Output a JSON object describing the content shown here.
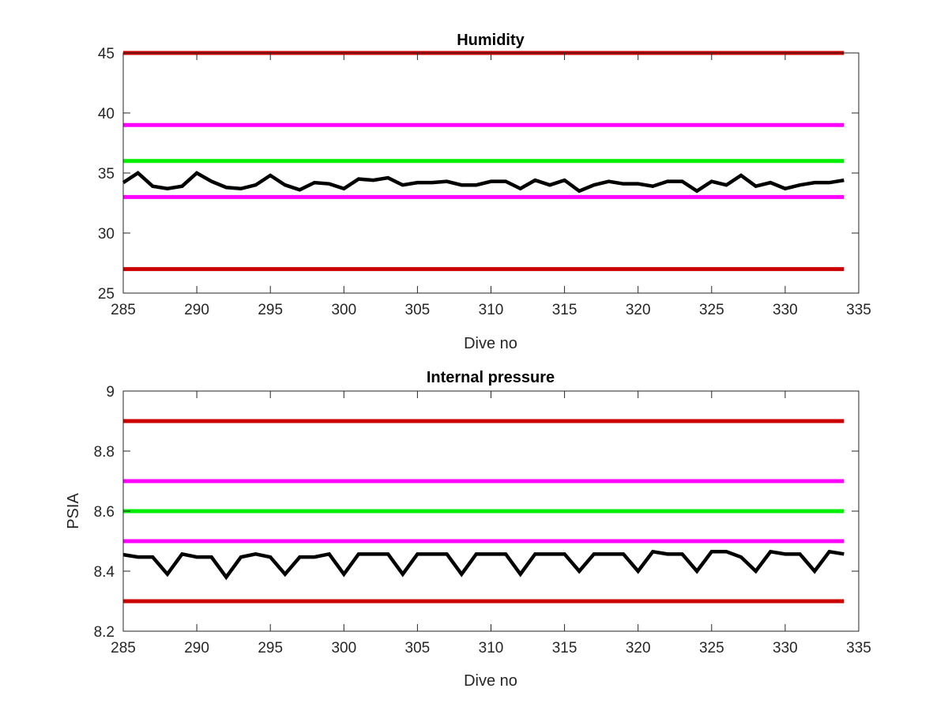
{
  "colors": {
    "limit_red": "#cc0000",
    "limit_magenta": "#ff00ff",
    "limit_green": "#00ee00",
    "series_black": "#000000"
  },
  "chart_data": [
    {
      "type": "line",
      "title": "Humidity",
      "xlabel": "Dive no",
      "ylabel": "",
      "xlim": [
        285,
        335
      ],
      "ylim": [
        25,
        45
      ],
      "xticks": [
        "285",
        "290",
        "295",
        "300",
        "305",
        "310",
        "315",
        "320",
        "325",
        "330",
        "335"
      ],
      "yticks": [
        "25",
        "30",
        "35",
        "40",
        "45"
      ],
      "grid": false,
      "hlines": [
        {
          "y": 45,
          "color": "limit_red",
          "x": [
            285,
            334
          ]
        },
        {
          "y": 39,
          "color": "limit_magenta",
          "x": [
            285,
            334
          ]
        },
        {
          "y": 36,
          "color": "limit_green",
          "x": [
            285,
            334
          ]
        },
        {
          "y": 33,
          "color": "limit_magenta",
          "x": [
            285,
            334
          ]
        },
        {
          "y": 27,
          "color": "limit_red",
          "x": [
            285,
            334
          ]
        }
      ],
      "series": [
        {
          "color": "series_black",
          "x": [
            285,
            286,
            287,
            288,
            289,
            290,
            291,
            292,
            293,
            294,
            295,
            296,
            297,
            298,
            299,
            300,
            301,
            302,
            303,
            304,
            305,
            306,
            307,
            308,
            309,
            310,
            311,
            312,
            313,
            314,
            315,
            316,
            317,
            318,
            319,
            320,
            321,
            322,
            323,
            324,
            325,
            326,
            327,
            328,
            329,
            330,
            331,
            332,
            333,
            334
          ],
          "y": [
            34.2,
            35.0,
            33.9,
            33.7,
            33.9,
            35.0,
            34.3,
            33.8,
            33.7,
            34.0,
            34.8,
            34.0,
            33.6,
            34.2,
            34.1,
            33.7,
            34.5,
            34.4,
            34.6,
            34.0,
            34.2,
            34.2,
            34.3,
            34.0,
            34.0,
            34.3,
            34.3,
            33.7,
            34.4,
            34.0,
            34.4,
            33.5,
            34.0,
            34.3,
            34.1,
            34.1,
            33.9,
            34.3,
            34.3,
            33.5,
            34.3,
            34.0,
            34.8,
            33.9,
            34.2,
            33.7,
            34.0,
            34.2,
            34.2,
            34.4
          ]
        }
      ]
    },
    {
      "type": "line",
      "title": "Internal pressure",
      "xlabel": "Dive no",
      "ylabel": "PSIA",
      "xlim": [
        285,
        335
      ],
      "ylim": [
        8.2,
        9
      ],
      "xticks": [
        "285",
        "290",
        "295",
        "300",
        "305",
        "310",
        "315",
        "320",
        "325",
        "330",
        "335"
      ],
      "yticks": [
        "8.2",
        "8.4",
        "8.6",
        "8.8",
        "9"
      ],
      "grid": false,
      "hlines": [
        {
          "y": 8.9,
          "color": "limit_red",
          "x": [
            285,
            334
          ]
        },
        {
          "y": 8.7,
          "color": "limit_magenta",
          "x": [
            285,
            334
          ]
        },
        {
          "y": 8.6,
          "color": "limit_green",
          "x": [
            285,
            334
          ]
        },
        {
          "y": 8.5,
          "color": "limit_magenta",
          "x": [
            285,
            334
          ]
        },
        {
          "y": 8.3,
          "color": "limit_red",
          "x": [
            285,
            334
          ]
        }
      ],
      "series": [
        {
          "color": "series_black",
          "x": [
            285,
            286,
            287,
            288,
            289,
            290,
            291,
            292,
            293,
            294,
            295,
            296,
            297,
            298,
            299,
            300,
            301,
            302,
            303,
            304,
            305,
            306,
            307,
            308,
            309,
            310,
            311,
            312,
            313,
            314,
            315,
            316,
            317,
            318,
            319,
            320,
            321,
            322,
            323,
            324,
            325,
            326,
            327,
            328,
            329,
            330,
            331,
            332,
            333,
            334
          ],
          "y": [
            8.455,
            8.447,
            8.447,
            8.39,
            8.457,
            8.447,
            8.447,
            8.38,
            8.447,
            8.457,
            8.447,
            8.39,
            8.447,
            8.447,
            8.457,
            8.39,
            8.457,
            8.457,
            8.457,
            8.39,
            8.457,
            8.457,
            8.457,
            8.39,
            8.457,
            8.457,
            8.457,
            8.39,
            8.457,
            8.457,
            8.457,
            8.4,
            8.457,
            8.457,
            8.457,
            8.4,
            8.465,
            8.457,
            8.457,
            8.4,
            8.465,
            8.465,
            8.447,
            8.4,
            8.465,
            8.457,
            8.457,
            8.4,
            8.465,
            8.457
          ]
        }
      ]
    }
  ]
}
